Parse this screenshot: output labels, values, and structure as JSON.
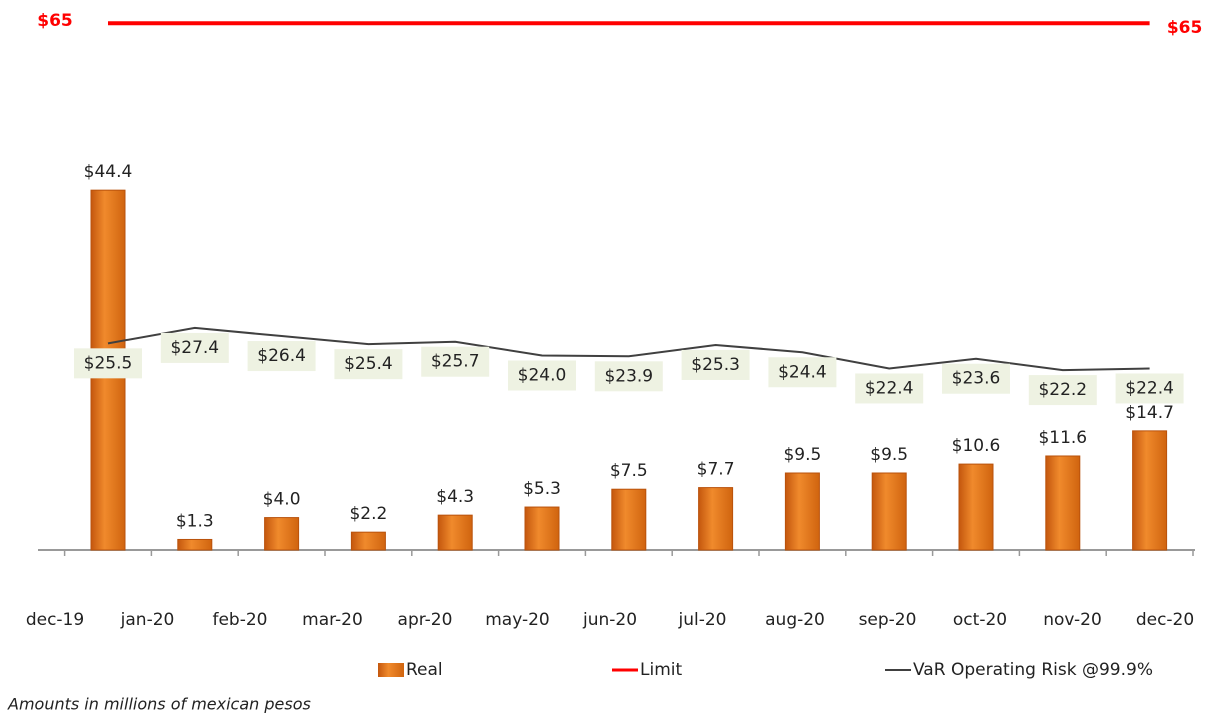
{
  "chart_data": {
    "type": "bar",
    "categories": [
      "dec-19",
      "jan-20",
      "feb-20",
      "mar-20",
      "apr-20",
      "may-20",
      "jun-20",
      "jul-20",
      "aug-20",
      "sep-20",
      "oct-20",
      "nov-20",
      "dec-20"
    ],
    "ylim": [
      0,
      67
    ],
    "series": [
      {
        "name": "Real",
        "type": "bar",
        "color": "#e8731c",
        "values": [
          44.4,
          1.3,
          4.0,
          2.2,
          4.3,
          5.3,
          7.5,
          7.7,
          9.5,
          9.5,
          10.6,
          11.6,
          14.7
        ],
        "value_labels": [
          "$44.4",
          "$1.3",
          "$4.0",
          "$2.2",
          "$4.3",
          "$5.3",
          "$7.5",
          "$7.7",
          "$9.5",
          "$9.5",
          "$10.6",
          "$11.6",
          "$14.7"
        ]
      },
      {
        "name": "Limit",
        "type": "line",
        "color": "#ff0000",
        "values": [
          65,
          65,
          65,
          65,
          65,
          65,
          65,
          65,
          65,
          65,
          65,
          65,
          65
        ],
        "value_labels": [
          "$65",
          null,
          null,
          null,
          null,
          null,
          null,
          null,
          null,
          null,
          null,
          null,
          "$65"
        ]
      },
      {
        "name": "VaR Operating Risk @99.9%",
        "type": "line",
        "color": "#404040",
        "values": [
          25.5,
          27.4,
          26.4,
          25.4,
          25.7,
          24.0,
          23.9,
          25.3,
          24.4,
          22.4,
          23.6,
          22.2,
          22.4
        ],
        "value_labels": [
          "$25.5",
          "$27.4",
          "$26.4",
          "$25.4",
          "$25.7",
          "$24.0",
          "$23.9",
          "$25.3",
          "$24.4",
          "$22.4",
          "$23.6",
          "$22.2",
          "$22.4"
        ]
      }
    ],
    "legend": "bottom",
    "note": "Amounts in millions of mexican pesos"
  }
}
